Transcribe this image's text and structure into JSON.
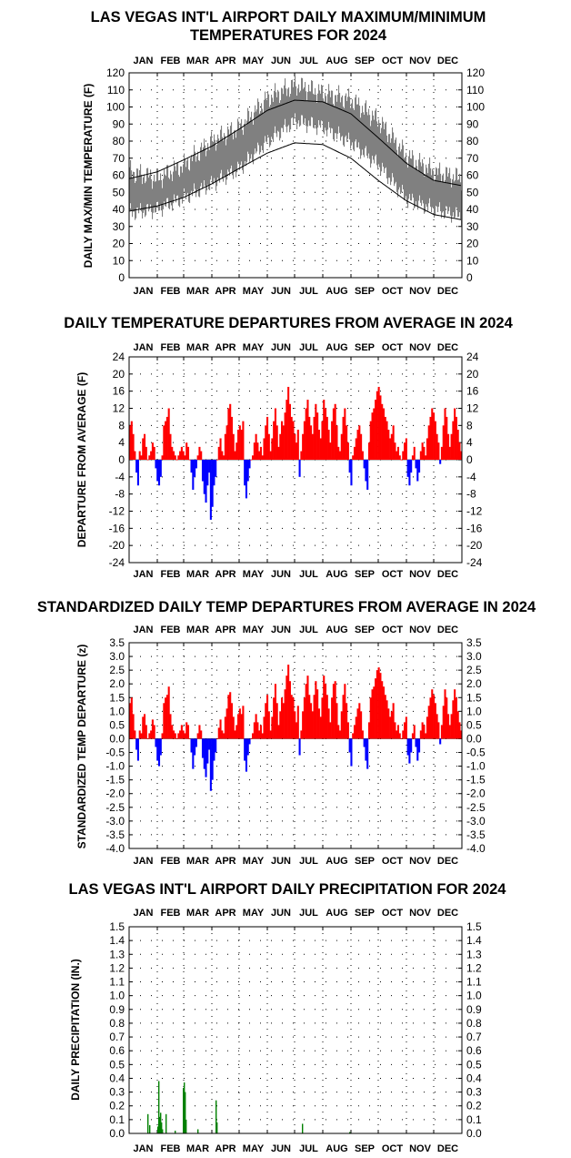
{
  "months": [
    "JAN",
    "FEB",
    "MAR",
    "APR",
    "MAY",
    "JUN",
    "JUL",
    "AUG",
    "SEP",
    "OCT",
    "NOV",
    "DEC"
  ],
  "colors": {
    "line": "#000000",
    "band": "#808080",
    "positive": "#ff0000",
    "negative": "#0000ff",
    "precip": "#008000",
    "grid": "#000000"
  },
  "chart_data": [
    {
      "type": "area",
      "title": "LAS VEGAS INT'L AIRPORT DAILY MAXIMUM/MINIMUM\nTEMPERATURES FOR 2024",
      "xlabel": "",
      "ylabel": "DAILY MAX/MIN TEMPERATURE (F)",
      "ylim": [
        0,
        120
      ],
      "yticks": [
        "0",
        "10",
        "20",
        "30",
        "40",
        "50",
        "60",
        "70",
        "80",
        "90",
        "100",
        "110",
        "120"
      ],
      "x": [
        "01-01",
        "02-01",
        "03-01",
        "04-01",
        "05-01",
        "06-01",
        "07-01",
        "08-01",
        "09-01",
        "10-01",
        "11-01",
        "12-01",
        "12-31"
      ],
      "series": [
        {
          "name": "Observed max",
          "values": [
            62,
            58,
            66,
            80,
            88,
            105,
            113,
            108,
            104,
            92,
            71,
            62,
            58
          ]
        },
        {
          "name": "Observed min",
          "values": [
            38,
            40,
            47,
            55,
            64,
            80,
            92,
            88,
            79,
            66,
            46,
            40,
            36
          ]
        },
        {
          "name": "Normal max",
          "values": [
            58,
            62,
            69,
            77,
            87,
            98,
            104,
            103,
            96,
            82,
            67,
            57,
            54
          ]
        },
        {
          "name": "Normal min",
          "values": [
            39,
            42,
            47,
            55,
            64,
            73,
            79,
            78,
            70,
            57,
            45,
            37,
            34
          ]
        }
      ],
      "grid": true
    },
    {
      "type": "bar",
      "title": "DAILY TEMPERATURE DEPARTURES FROM AVERAGE IN 2024",
      "ylabel": "DEPARTURE FROM AVERAGE (F)",
      "ylim": [
        -24,
        24
      ],
      "yticks": [
        "-24",
        "-20",
        "-16",
        "-12",
        "-8",
        "-4",
        "0",
        "4",
        "8",
        "12",
        "16",
        "20",
        "24"
      ],
      "values": [
        8,
        9,
        6,
        2,
        -3,
        -6,
        2,
        1,
        5,
        6,
        3,
        0,
        1,
        2,
        4,
        3,
        -2,
        -5,
        -6,
        -4,
        1,
        8,
        9,
        10,
        12,
        6,
        3,
        2,
        1,
        0,
        1,
        2,
        3,
        2,
        1,
        4,
        3,
        0,
        -3,
        -7,
        -4,
        -2,
        1,
        3,
        2,
        -5,
        -8,
        -10,
        -6,
        -3,
        -14,
        -11,
        -6,
        -4,
        0,
        3,
        5,
        2,
        1,
        6,
        8,
        12,
        13,
        10,
        6,
        2,
        4,
        7,
        8,
        7,
        9,
        -6,
        -9,
        -5,
        -2,
        0,
        1,
        4,
        6,
        4,
        2,
        3,
        1,
        5,
        8,
        10,
        6,
        2,
        5,
        9,
        12,
        8,
        3,
        6,
        9,
        8,
        11,
        14,
        17,
        13,
        10,
        9,
        6,
        4,
        7,
        -4,
        2,
        6,
        9,
        12,
        14,
        10,
        8,
        6,
        10,
        13,
        11,
        7,
        5,
        9,
        14,
        12,
        10,
        7,
        4,
        9,
        12,
        13,
        8,
        3,
        2,
        6,
        10,
        12,
        8,
        4,
        -3,
        -6,
        1,
        3,
        5,
        7,
        8,
        6,
        2,
        -2,
        -5,
        -7,
        4,
        9,
        11,
        12,
        14,
        16,
        17,
        15,
        13,
        12,
        10,
        9,
        7,
        5,
        6,
        8,
        4,
        2,
        3,
        1,
        0,
        2,
        4,
        5,
        -4,
        -6,
        -3,
        1,
        3,
        -2,
        -5,
        -3,
        2,
        4,
        3,
        1,
        5,
        8,
        10,
        12,
        11,
        9,
        6,
        4,
        -1,
        3,
        8,
        12,
        10,
        6,
        3,
        6,
        9,
        12,
        10,
        7,
        4,
        2
      ],
      "grid": true
    },
    {
      "type": "bar",
      "title": "STANDARDIZED DAILY TEMP DEPARTURES FROM AVERAGE IN 2024",
      "ylabel": "STANDARDIZED TEMP DEPARTURE (z)",
      "ylim": [
        -4.0,
        3.5
      ],
      "yticks": [
        "-4.0",
        "-3.5",
        "-3.0",
        "-2.5",
        "-2.0",
        "-1.5",
        "-1.0",
        "-0.5",
        "0.0",
        "0.5",
        "1.0",
        "1.5",
        "2.0",
        "2.5",
        "3.0",
        "3.5"
      ],
      "values": [
        1.3,
        1.5,
        0.9,
        0.3,
        -0.4,
        -0.8,
        0.3,
        0.2,
        0.8,
        0.9,
        0.5,
        0.0,
        0.2,
        0.3,
        0.7,
        0.5,
        -0.3,
        -0.8,
        -1.0,
        -0.6,
        0.2,
        1.3,
        1.5,
        1.6,
        1.9,
        0.9,
        0.5,
        0.3,
        0.2,
        0.0,
        0.2,
        0.3,
        0.5,
        0.3,
        0.2,
        0.6,
        0.5,
        0.0,
        -0.5,
        -1.1,
        -0.6,
        -0.3,
        0.2,
        0.5,
        0.3,
        -0.7,
        -1.1,
        -1.4,
        -0.9,
        -0.4,
        -1.9,
        -1.5,
        -0.8,
        -0.5,
        0.0,
        0.4,
        0.7,
        0.3,
        0.2,
        0.8,
        1.1,
        1.6,
        1.7,
        1.3,
        0.8,
        0.3,
        0.5,
        0.9,
        1.1,
        0.9,
        1.2,
        -0.8,
        -1.2,
        -0.6,
        -0.2,
        0.0,
        0.2,
        0.6,
        0.9,
        0.6,
        0.3,
        0.5,
        0.2,
        0.8,
        1.3,
        1.6,
        1.0,
        0.3,
        0.8,
        1.5,
        2.0,
        1.3,
        0.5,
        1.0,
        1.5,
        1.3,
        1.8,
        2.3,
        2.7,
        2.1,
        1.6,
        1.5,
        1.0,
        0.6,
        1.2,
        -0.6,
        0.3,
        1.0,
        1.5,
        2.0,
        2.3,
        1.6,
        1.3,
        1.0,
        1.6,
        2.1,
        1.8,
        1.1,
        0.8,
        1.5,
        2.3,
        2.0,
        1.6,
        1.1,
        0.6,
        1.5,
        2.0,
        2.1,
        1.3,
        0.5,
        0.3,
        1.0,
        1.6,
        2.0,
        1.3,
        0.6,
        -0.5,
        -1.0,
        0.2,
        0.5,
        0.8,
        1.1,
        1.3,
        1.0,
        0.3,
        -0.3,
        -0.8,
        -1.1,
        0.6,
        1.5,
        1.8,
        1.9,
        2.2,
        2.5,
        2.6,
        2.4,
        2.1,
        1.9,
        1.6,
        1.4,
        1.1,
        0.8,
        1.0,
        1.3,
        0.6,
        0.3,
        0.5,
        0.2,
        0.0,
        0.3,
        0.6,
        0.8,
        -0.6,
        -0.9,
        -0.5,
        0.2,
        0.5,
        -0.3,
        -0.8,
        -0.5,
        0.3,
        0.6,
        0.5,
        0.2,
        0.8,
        1.2,
        1.5,
        1.8,
        1.6,
        1.3,
        0.9,
        0.6,
        -0.2,
        0.5,
        1.2,
        1.8,
        1.5,
        0.9,
        0.5,
        0.9,
        1.4,
        1.8,
        1.5,
        1.0,
        0.6,
        0.3
      ],
      "grid": true
    },
    {
      "type": "bar",
      "title": "LAS VEGAS INT'L AIRPORT DAILY PRECIPITATION FOR 2024",
      "ylabel": "DAILY PRECIPITATION (IN.)",
      "ylim": [
        0,
        1.5
      ],
      "yticks": [
        "0.0",
        "0.1",
        "0.2",
        "0.3",
        "0.4",
        "0.5",
        "0.6",
        "0.7",
        "0.8",
        "0.9",
        "1.0",
        "1.1",
        "1.2",
        "1.3",
        "1.4",
        "1.5"
      ],
      "days": [
        20,
        22,
        31,
        32,
        33,
        34,
        35,
        36,
        40,
        50,
        59,
        60,
        61,
        62,
        75,
        95,
        96,
        190,
        242
      ],
      "values": [
        0.14,
        0.06,
        0.05,
        0.38,
        0.12,
        0.15,
        0.08,
        0.03,
        0.14,
        0.02,
        0.33,
        0.37,
        0.3,
        0.1,
        0.03,
        0.24,
        0.08,
        0.07,
        0.01
      ],
      "grid": true
    }
  ]
}
